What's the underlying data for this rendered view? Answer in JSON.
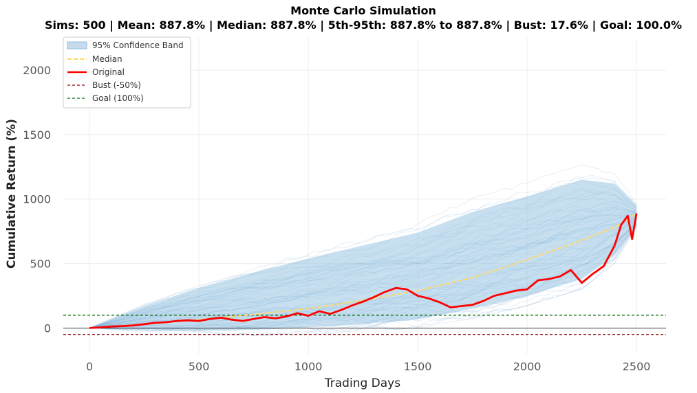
{
  "chart_data": {
    "type": "line",
    "title": "Monte Carlo Simulation",
    "subtitle": "Sims: 500 | Mean: 887.8% | Median: 887.8% | 5th-95th: 887.8% to 887.8% | Bust: 17.6% | Goal: 100.0%",
    "xlabel": "Trading Days",
    "ylabel": "Cumulative Return (%)",
    "xlim": [
      -120,
      2635
    ],
    "ylim": [
      -200,
      2250
    ],
    "x_ticks": [
      0,
      500,
      1000,
      1500,
      2000,
      2500
    ],
    "y_ticks": [
      0,
      500,
      1000,
      1500,
      2000
    ],
    "grid": true,
    "legend_position": "top-left",
    "legend": [
      "95% Confidence Band",
      "Median",
      "Original",
      "Bust (-50%)",
      "Goal (100%)"
    ],
    "num_sims": 500,
    "reference_lines": [
      {
        "name": "Bust (-50%)",
        "y": -50,
        "color": "#8b0000",
        "style": "dashed"
      },
      {
        "name": "Goal (100%)",
        "y": 100,
        "color": "#006400",
        "style": "dashed"
      },
      {
        "name": "zero",
        "y": 0,
        "color": "#333333",
        "style": "solid"
      }
    ],
    "confidence_band": {
      "name": "95% Confidence Band",
      "color": "#8fbfe0",
      "x": [
        0,
        250,
        500,
        750,
        1000,
        1250,
        1500,
        1750,
        2000,
        2250,
        2400,
        2500
      ],
      "lower": [
        0,
        -10,
        -20,
        -15,
        5,
        30,
        70,
        150,
        250,
        380,
        560,
        800
      ],
      "upper": [
        0,
        170,
        310,
        430,
        540,
        640,
        740,
        900,
        1020,
        1150,
        1120,
        950
      ]
    },
    "series": [
      {
        "name": "Median",
        "color": "#ffd966",
        "style": "dashed",
        "x": [
          0,
          250,
          500,
          750,
          1000,
          1250,
          1500,
          1750,
          2000,
          2250,
          2400,
          2500
        ],
        "values": [
          0,
          30,
          65,
          105,
          150,
          215,
          290,
          390,
          530,
          680,
          780,
          888
        ]
      },
      {
        "name": "Original",
        "color": "#ff0000",
        "style": "solid",
        "x": [
          0,
          50,
          100,
          150,
          200,
          250,
          300,
          350,
          400,
          450,
          500,
          550,
          600,
          650,
          700,
          750,
          800,
          850,
          900,
          950,
          1000,
          1050,
          1100,
          1150,
          1200,
          1250,
          1300,
          1350,
          1400,
          1450,
          1500,
          1550,
          1600,
          1650,
          1700,
          1750,
          1800,
          1850,
          1900,
          1950,
          2000,
          2050,
          2100,
          2150,
          2200,
          2250,
          2300,
          2350,
          2400,
          2430,
          2460,
          2470,
          2480,
          2500
        ],
        "values": [
          0,
          5,
          12,
          15,
          20,
          30,
          40,
          45,
          55,
          60,
          55,
          70,
          80,
          65,
          55,
          70,
          85,
          75,
          90,
          115,
          95,
          130,
          110,
          140,
          175,
          205,
          240,
          280,
          310,
          300,
          250,
          230,
          200,
          160,
          170,
          180,
          210,
          250,
          270,
          290,
          300,
          370,
          380,
          400,
          450,
          350,
          420,
          480,
          640,
          800,
          870,
          780,
          690,
          888
        ]
      }
    ]
  }
}
